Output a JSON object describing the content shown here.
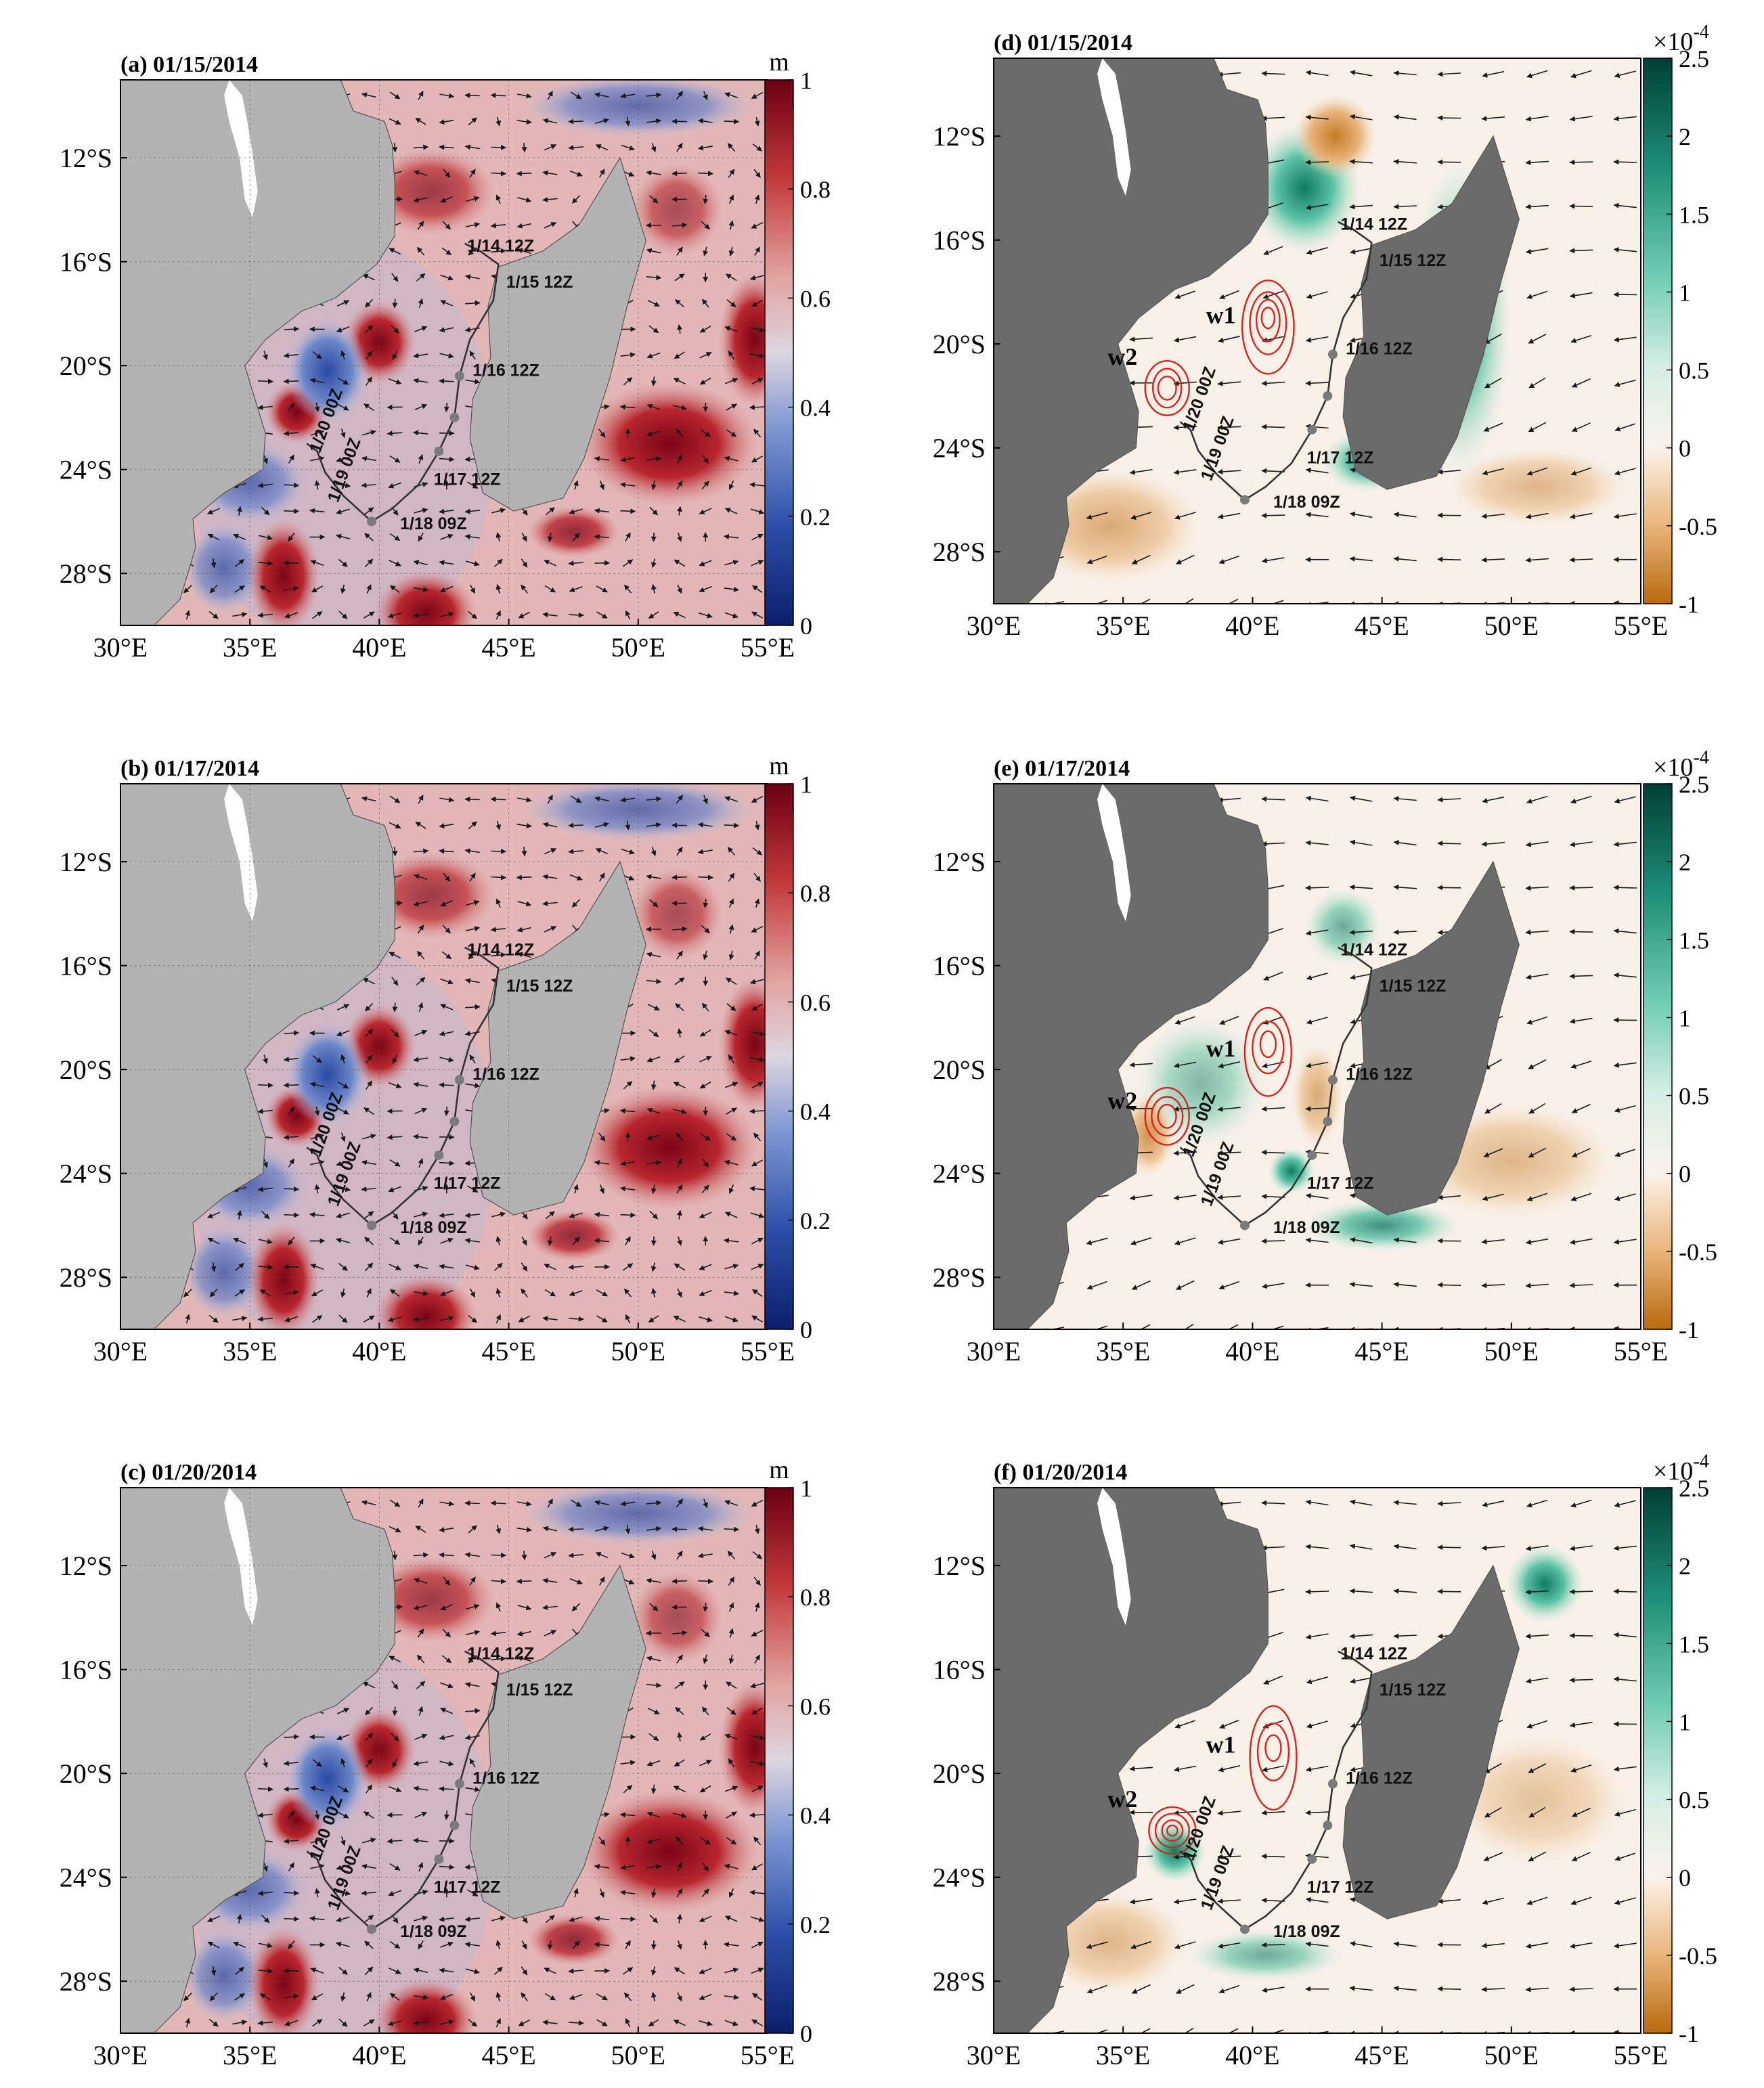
{
  "map": {
    "lon_range": [
      30,
      55
    ],
    "lat_range": [
      -30,
      -9
    ],
    "lon_ticks": [
      30,
      35,
      40,
      45,
      50,
      55
    ],
    "lat_ticks": [
      -12,
      -16,
      -20,
      -24,
      -28
    ],
    "lon_tick_labels": [
      "30°E",
      "35°E",
      "40°E",
      "45°E",
      "50°E",
      "55°E"
    ],
    "lat_tick_labels": [
      "12°S",
      "16°S",
      "20°S",
      "24°S",
      "28°S"
    ]
  },
  "cyclone_track": {
    "points": [
      {
        "lon": 43.3,
        "lat": -15.3
      },
      {
        "lon": 43.9,
        "lat": -15.6
      },
      {
        "lon": 44.6,
        "lat": -16.1
      },
      {
        "lon": 44.4,
        "lat": -17.5
      },
      {
        "lon": 43.5,
        "lat": -19.0
      },
      {
        "lon": 43.1,
        "lat": -20.4
      },
      {
        "lon": 42.9,
        "lat": -22.0
      },
      {
        "lon": 42.3,
        "lat": -23.3
      },
      {
        "lon": 41.5,
        "lat": -24.6
      },
      {
        "lon": 40.5,
        "lat": -25.5
      },
      {
        "lon": 39.7,
        "lat": -26.0
      },
      {
        "lon": 38.6,
        "lat": -25.0
      },
      {
        "lon": 37.9,
        "lat": -24.1
      },
      {
        "lon": 37.6,
        "lat": -23.3
      },
      {
        "lon": 37.2,
        "lat": -23.0
      }
    ],
    "markers": [
      {
        "lon": 43.1,
        "lat": -20.4
      },
      {
        "lon": 42.9,
        "lat": -22.0
      },
      {
        "lon": 42.3,
        "lat": -23.3
      },
      {
        "lon": 39.7,
        "lat": -26.0
      }
    ],
    "labels": [
      {
        "text": "1/14 12Z",
        "lon": 43.4,
        "lat": -15.6
      },
      {
        "text": "1/15 12Z",
        "lon": 44.9,
        "lat": -17.0
      },
      {
        "text": "1/16 12Z",
        "lon": 43.6,
        "lat": -20.4
      },
      {
        "text": "1/17 12Z",
        "lon": 42.1,
        "lat": -24.6
      },
      {
        "text": "1/18 09Z",
        "lon": 40.8,
        "lat": -26.3
      },
      {
        "text": "1/19 00Z",
        "lon": 38.4,
        "lat": -25.3,
        "rotate": -70
      },
      {
        "text": "1/20 00Z",
        "lon": 37.7,
        "lat": -23.4,
        "rotate": -70
      }
    ]
  },
  "panels_left": {
    "unit": "m",
    "colorbar_ticks": [
      "0",
      "0.2",
      "0.4",
      "0.6",
      "0.8",
      "1"
    ],
    "panels": [
      {
        "title": "(a) 01/15/2014"
      },
      {
        "title": "(b) 01/17/2014"
      },
      {
        "title": "(c) 01/20/2014"
      }
    ]
  },
  "panels_right": {
    "unit": "×10",
    "unit_exponent": "-4",
    "colorbar_ticks": [
      "-1",
      "-0.5",
      "0",
      "0.5",
      "1",
      "1.5",
      "2",
      "2.5"
    ],
    "panels": [
      {
        "title": "(d) 01/15/2014",
        "eddy_labels": [
          {
            "text": "w1",
            "lon": 38.2,
            "lat": -19.2
          },
          {
            "text": "w2",
            "lon": 34.4,
            "lat": -20.8
          }
        ]
      },
      {
        "title": "(e) 01/17/2014",
        "eddy_labels": [
          {
            "text": "w1",
            "lon": 38.2,
            "lat": -19.5
          },
          {
            "text": "w2",
            "lon": 34.4,
            "lat": -21.5
          }
        ]
      },
      {
        "title": "(f) 01/20/2014",
        "eddy_labels": [
          {
            "text": "w1",
            "lon": 38.2,
            "lat": -19.2
          },
          {
            "text": "w2",
            "lon": 34.4,
            "lat": -21.3
          }
        ]
      }
    ]
  },
  "colors": {
    "land_left": "#b3b3b3",
    "land_right": "#6b6b6b",
    "track": "#333333",
    "marker": "#7a7a7a",
    "contour": "#e0201b"
  }
}
